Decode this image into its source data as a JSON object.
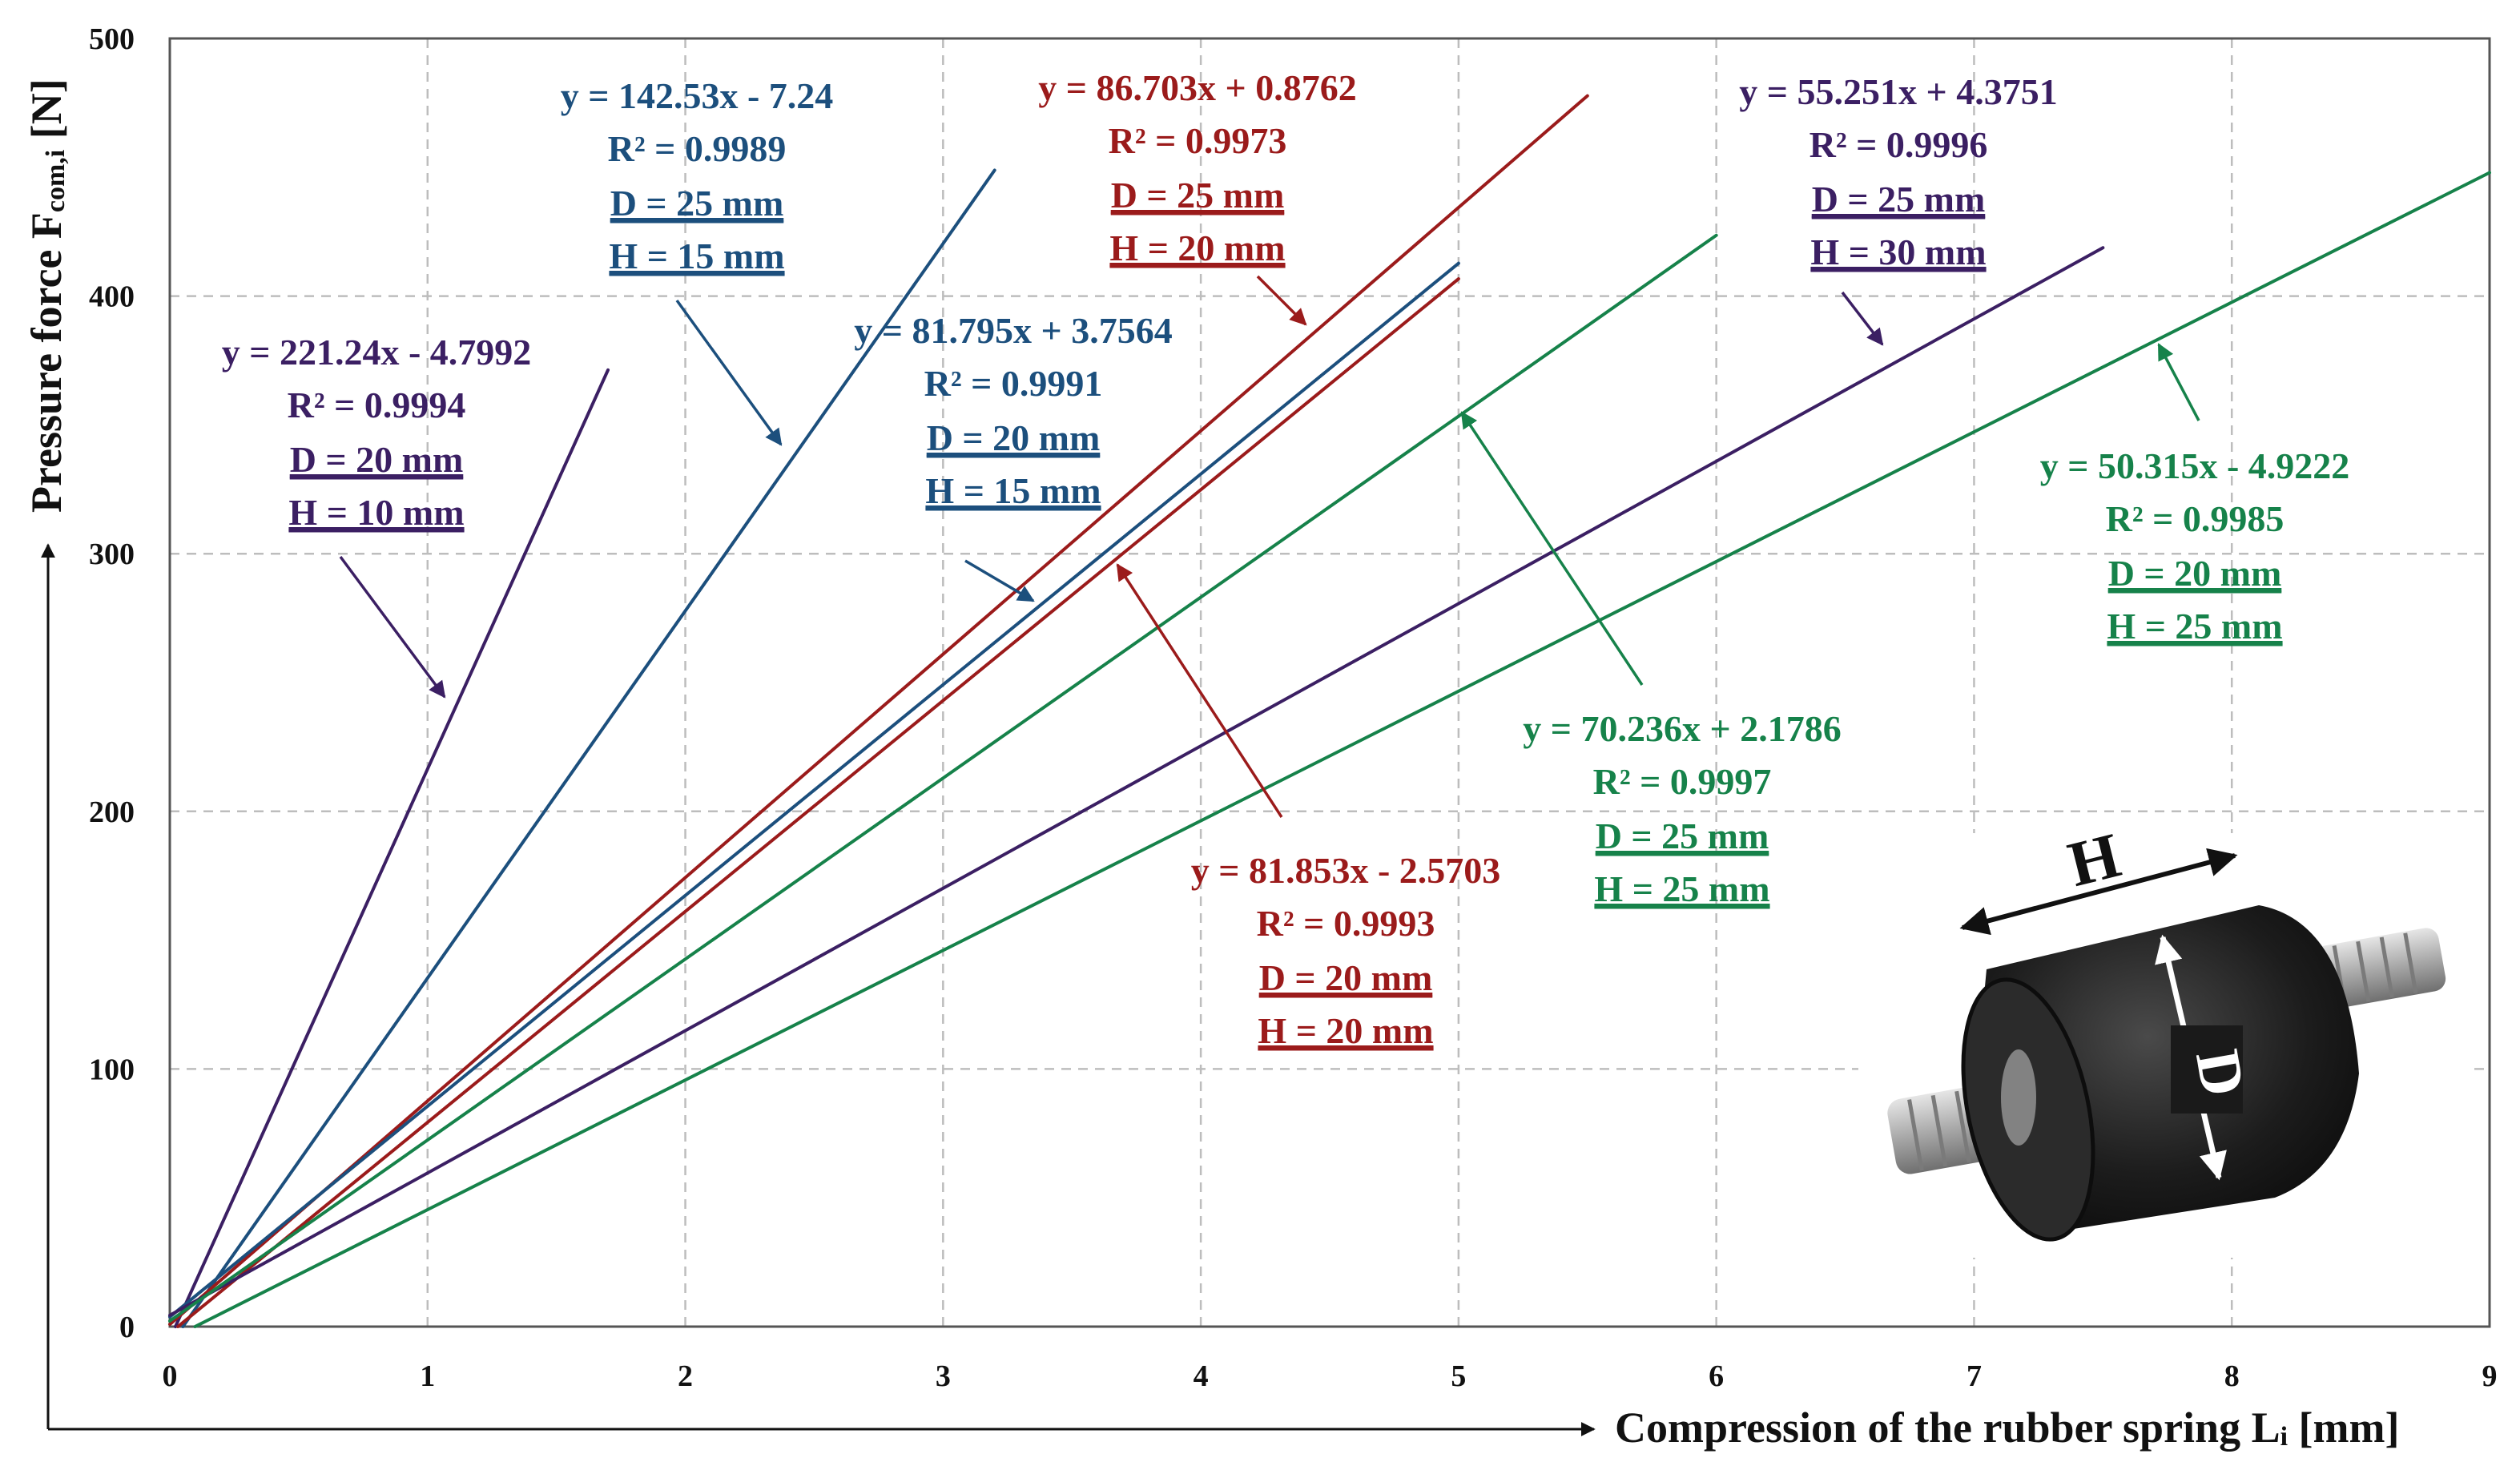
{
  "chart_data": {
    "type": "line",
    "title": "",
    "xlabel": "Compression of the rubber spring L",
    "xlabel_sub": "i",
    "xlabel_unit": " [mm]",
    "ylabel": "Pressure force F",
    "ylabel_sub": "com,i",
    "ylabel_unit": " [N]",
    "xlim": [
      0,
      9
    ],
    "ylim": [
      0,
      500
    ],
    "x_ticks": [
      "0",
      "1",
      "2",
      "3",
      "4",
      "5",
      "6",
      "7",
      "8",
      "9"
    ],
    "y_ticks": [
      "0",
      "100",
      "200",
      "300",
      "400",
      "500"
    ],
    "grid": true,
    "legend": "none",
    "series": [
      {
        "equation": "y = 221.24x - 4.7992",
        "r2": "R² = 0.9994",
        "d": "D = 20 mm",
        "h": "H = 10 mm",
        "slope": 221.24,
        "intercept": -4.7992,
        "x_range": [
          0,
          1.7
        ],
        "color": "#3b1f63"
      },
      {
        "equation": "y = 142.53x - 7.24",
        "r2": "R² = 0.9989",
        "d": "D = 25 mm",
        "h": "H = 15 mm",
        "slope": 142.53,
        "intercept": -7.24,
        "x_range": [
          0,
          3.2
        ],
        "color": "#1c4f7d"
      },
      {
        "equation": "y = 86.703x + 0.8762",
        "r2": "R² = 0.9973",
        "d": "D = 25 mm",
        "h": "H = 20 mm",
        "slope": 86.703,
        "intercept": 0.8762,
        "x_range": [
          0,
          5.5
        ],
        "color": "#9b1b1b"
      },
      {
        "equation": "y = 81.795x + 3.7564",
        "r2": "R² = 0.9991",
        "d": "D = 20 mm",
        "h": "H = 15 mm",
        "slope": 81.795,
        "intercept": 3.7564,
        "x_range": [
          0,
          5.0
        ],
        "color": "#1c4f7d"
      },
      {
        "equation": "y = 81.853x - 2.5703",
        "r2": "R² = 0.9993",
        "d": "D = 20 mm",
        "h": "H = 20 mm",
        "slope": 81.853,
        "intercept": -2.5703,
        "x_range": [
          0,
          5.0
        ],
        "color": "#9b1b1b"
      },
      {
        "equation": "y = 55.251x + 4.3751",
        "r2": "R² = 0.9996",
        "d": "D = 25 mm",
        "h": "H = 30 mm",
        "slope": 55.251,
        "intercept": 4.3751,
        "x_range": [
          0,
          7.5
        ],
        "color": "#3b1f63"
      },
      {
        "equation": "y = 70.236x + 2.1786",
        "r2": "R² = 0.9997",
        "d": "D = 25 mm",
        "h": "H = 25 mm",
        "slope": 70.236,
        "intercept": 2.1786,
        "x_range": [
          0,
          6.0
        ],
        "color": "#16824a"
      },
      {
        "equation": "y = 50.315x - 4.9222",
        "r2": "R² = 0.9985",
        "d": "D = 20 mm",
        "h": "H = 25 mm",
        "slope": 50.315,
        "intercept": -4.9222,
        "x_range": [
          0,
          9.0
        ],
        "color": "#16824a"
      }
    ]
  },
  "photo": {
    "h_label": "H",
    "d_label": "D"
  }
}
